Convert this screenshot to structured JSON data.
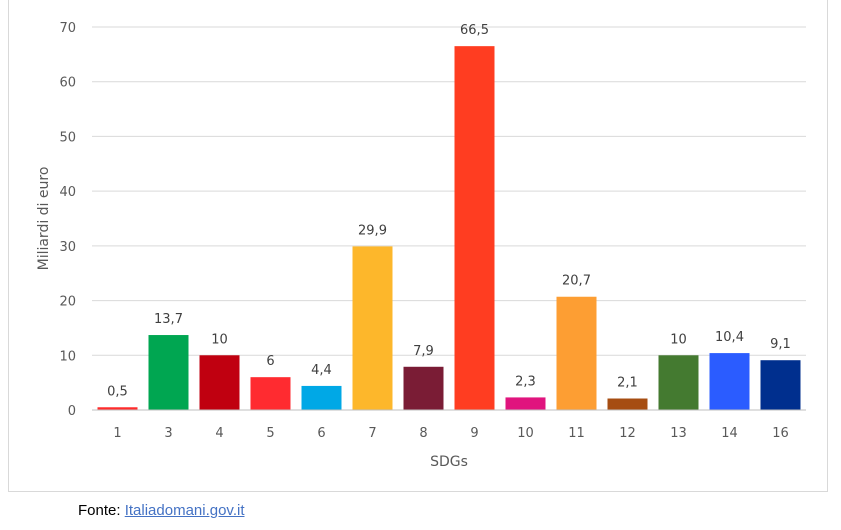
{
  "chart_data": {
    "type": "bar",
    "title": "",
    "xlabel": "SDGs",
    "ylabel": "Miliardi di euro",
    "ylim": [
      0,
      70
    ],
    "yticks": [
      0,
      10,
      20,
      30,
      40,
      50,
      60,
      70
    ],
    "grid": true,
    "categories": [
      "1",
      "3",
      "4",
      "5",
      "6",
      "7",
      "8",
      "9",
      "10",
      "11",
      "12",
      "13",
      "14",
      "16"
    ],
    "values": [
      0.5,
      13.7,
      10,
      6,
      4.4,
      29.9,
      7.9,
      66.5,
      2.3,
      20.7,
      2.1,
      10,
      10.4,
      9.1
    ],
    "data_labels": [
      "0,5",
      "13,7",
      "10",
      "6",
      "4,4",
      "29,9",
      "7,9",
      "66,5",
      "2,3",
      "20,7",
      "2,1",
      "10",
      "10,4",
      "9,1"
    ],
    "colors": [
      "#ff2b2b",
      "#00a651",
      "#c00010",
      "#ff2b30",
      "#00a8e6",
      "#fdb72b",
      "#7a1c35",
      "#ff3d21",
      "#e0147e",
      "#fd9e33",
      "#a64d12",
      "#447a30",
      "#2b5cff",
      "#002f8e"
    ]
  },
  "source": {
    "label": "Fonte:",
    "link": "Italiadomani.gov.it"
  }
}
